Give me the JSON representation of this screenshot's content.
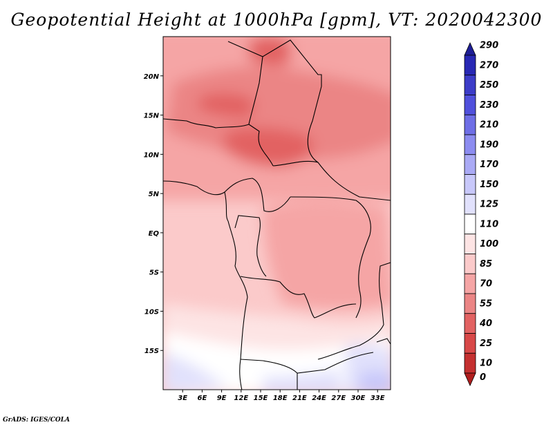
{
  "title": "Geopotential Height at 1000hPa [gpm], VT: 2020042300",
  "credit": "GrADS: IGES/COLA",
  "map": {
    "lon_range": [
      0,
      35
    ],
    "lat_range": [
      -20,
      25
    ],
    "y_ticks": [
      {
        "value": 20,
        "label": "20N"
      },
      {
        "value": 15,
        "label": "15N"
      },
      {
        "value": 10,
        "label": "10N"
      },
      {
        "value": 5,
        "label": "5N"
      },
      {
        "value": 0,
        "label": "EQ"
      },
      {
        "value": -5,
        "label": "5S"
      },
      {
        "value": -10,
        "label": "10S"
      },
      {
        "value": -15,
        "label": "15S"
      }
    ],
    "x_ticks": [
      {
        "value": 3,
        "label": "3E"
      },
      {
        "value": 6,
        "label": "6E"
      },
      {
        "value": 9,
        "label": "9E"
      },
      {
        "value": 12,
        "label": "12E"
      },
      {
        "value": 15,
        "label": "15E"
      },
      {
        "value": 18,
        "label": "18E"
      },
      {
        "value": 21,
        "label": "21E"
      },
      {
        "value": 24,
        "label": "24E"
      },
      {
        "value": 27,
        "label": "27E"
      },
      {
        "value": 30,
        "label": "30E"
      },
      {
        "value": 33,
        "label": "33E"
      }
    ]
  },
  "colorbar": {
    "levels": [
      {
        "label": "290",
        "color": "#1e1e96"
      },
      {
        "label": "270",
        "color": "#2828b4"
      },
      {
        "label": "250",
        "color": "#3c3cc8"
      },
      {
        "label": "230",
        "color": "#5050dc"
      },
      {
        "label": "210",
        "color": "#6e6ee6"
      },
      {
        "label": "190",
        "color": "#8c8cf0"
      },
      {
        "label": "170",
        "color": "#aaaaf5"
      },
      {
        "label": "150",
        "color": "#c8c8fa"
      },
      {
        "label": "125",
        "color": "#e1e1fc"
      },
      {
        "label": "110",
        "color": "#ffffff"
      },
      {
        "label": "100",
        "color": "#fde4e4"
      },
      {
        "label": "85",
        "color": "#fbcaca"
      },
      {
        "label": "70",
        "color": "#f5a5a5"
      },
      {
        "label": "55",
        "color": "#eb8585"
      },
      {
        "label": "40",
        "color": "#e26262"
      },
      {
        "label": "25",
        "color": "#d84848"
      },
      {
        "label": "10",
        "color": "#c43030"
      },
      {
        "label": "0",
        "color": "#b01e1e"
      }
    ]
  }
}
